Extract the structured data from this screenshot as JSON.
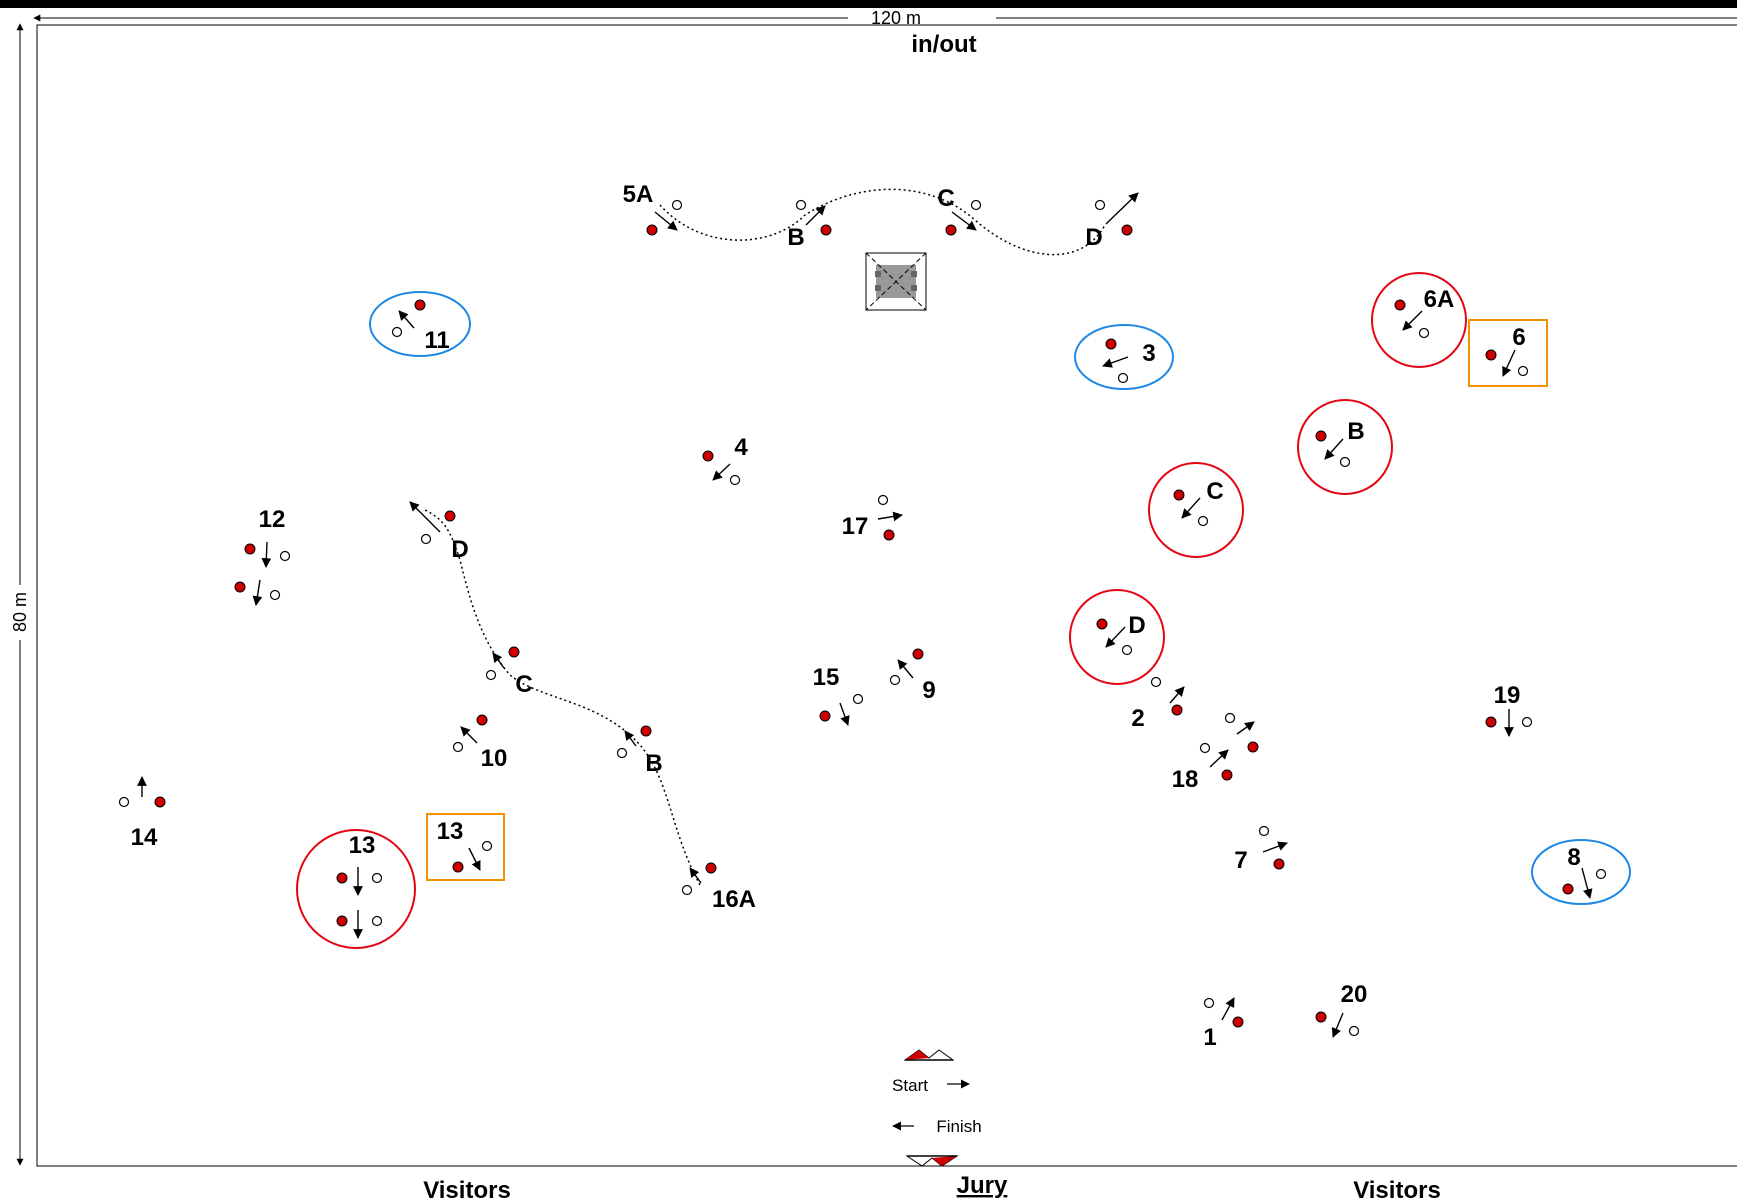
{
  "header": {
    "width_label": "120 m",
    "height_label": "80 m",
    "entrance": "in/out"
  },
  "footer": {
    "left": "Visitors",
    "center": "Jury",
    "right": "Visitors"
  },
  "start_finish": {
    "start": "Start",
    "finish": "Finish"
  },
  "colors": {
    "red_flag": "#cc0000",
    "circle": "#e30613",
    "oval": "#1e88e5",
    "box": "#f39200"
  },
  "labels": {
    "n1": "1",
    "n2": "2",
    "n3": "3",
    "n4": "4",
    "n5A": "5A",
    "n5B": "B",
    "n5C": "C",
    "n5D": "D",
    "n6": "6",
    "n6A": "6A",
    "n6B": "B",
    "n6C": "C",
    "n6D": "D",
    "n7": "7",
    "n8": "8",
    "n9": "9",
    "n10": "10",
    "n11": "11",
    "n12": "12",
    "n13a": "13",
    "n13b": "13",
    "n14": "14",
    "n15": "15",
    "n16A": "16A",
    "n16B": "B",
    "n16C": "C",
    "n16D": "D",
    "n17": "17",
    "n18": "18",
    "n19": "19",
    "n20": "20"
  }
}
